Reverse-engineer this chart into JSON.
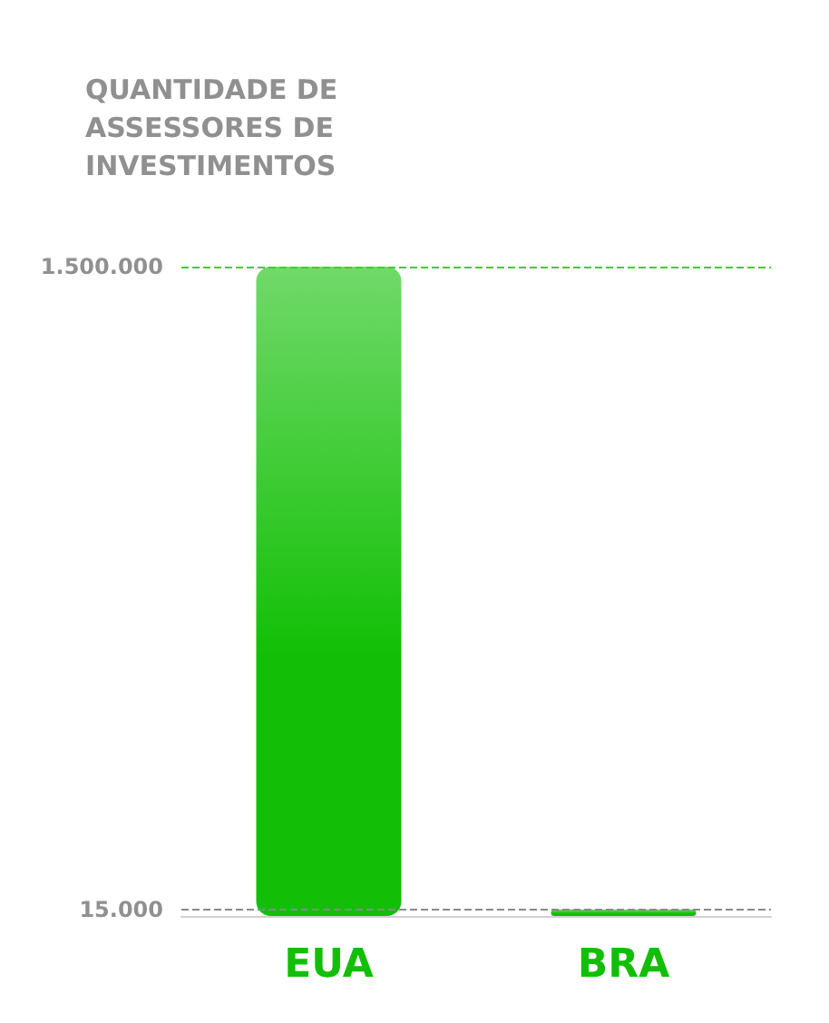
{
  "chart_data": {
    "type": "bar",
    "title": "QUANTIDADE DE ASSESSORES DE INVESTIMENTOS",
    "categories": [
      "EUA",
      "BRA"
    ],
    "values": [
      1500000,
      15000
    ],
    "color": "#12bf06",
    "ylim": [
      0,
      1500000
    ],
    "yticks": [
      {
        "value": 15000,
        "label": "15.000"
      },
      {
        "value": 1500000,
        "label": "1.500.000"
      }
    ],
    "grid": false,
    "ref_lines": [
      {
        "axis": "y",
        "value": 1500000,
        "color": "#3ecf2e",
        "line_style": "dashed"
      },
      {
        "axis": "y",
        "value": 15000,
        "color": "#8a8a8a",
        "line_style": "dashed"
      }
    ]
  }
}
